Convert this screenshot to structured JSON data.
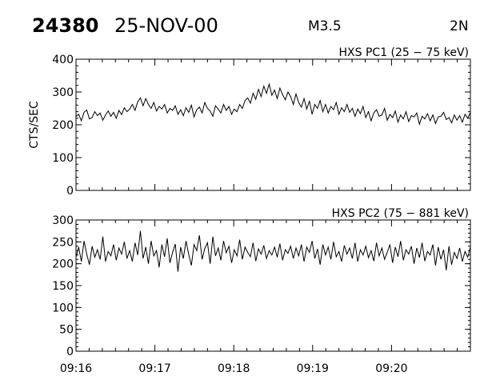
{
  "header": {
    "event_id": "24380",
    "date": "25-NOV-00",
    "flare_class": "M3.5",
    "location": "2N"
  },
  "chart_data": [
    {
      "type": "line",
      "title": "HXS PC1 (25 − 75 keV)",
      "ylabel": "CTS/SEC",
      "ylim": [
        0,
        400
      ],
      "yticks": [
        0,
        100,
        200,
        300,
        400
      ],
      "xlim": [
        0,
        5
      ],
      "xticks": [
        0,
        1,
        2,
        3,
        4
      ],
      "xtick_labels": [
        "09:16",
        "09:17",
        "09:18",
        "09:19",
        "09:20"
      ],
      "x_unit": "minutes after 09:16",
      "series": [
        {
          "values": [
            225,
            232,
            212,
            238,
            245,
            218,
            222,
            240,
            228,
            236,
            214,
            230,
            242,
            226,
            238,
            220,
            244,
            231,
            252,
            240,
            248,
            262,
            244,
            270,
            282,
            258,
            280,
            262,
            250,
            268,
            242,
            256,
            248,
            262,
            236,
            250,
            244,
            258,
            232,
            246,
            228,
            252,
            238,
            260,
            224,
            246,
            254,
            236,
            268,
            250,
            242,
            226,
            258,
            248,
            236,
            262,
            244,
            256,
            232,
            248,
            240,
            262,
            250,
            274,
            282,
            266,
            296,
            278,
            308,
            286,
            318,
            296,
            324,
            290,
            306,
            280,
            312,
            292,
            276,
            300,
            286,
            262,
            294,
            268,
            254,
            280,
            248,
            272,
            232,
            262,
            250,
            274,
            240,
            262,
            236,
            256,
            246,
            268,
            232,
            252,
            240,
            262,
            238,
            250,
            226,
            248,
            234,
            256,
            222,
            240,
            212,
            236,
            246,
            226,
            230,
            250,
            214,
            232,
            222,
            242,
            208,
            230,
            218,
            240,
            210,
            228,
            224,
            236,
            202,
            226,
            218,
            234,
            212,
            230,
            204,
            224,
            226,
            238,
            216,
            222,
            206,
            230,
            214,
            228,
            208,
            232,
            220,
            238
          ]
        }
      ]
    },
    {
      "type": "line",
      "title": "HXS PC2 (75 − 881 keV)",
      "ylabel": "",
      "ylim": [
        0,
        300
      ],
      "yticks": [
        0,
        50,
        100,
        150,
        200,
        250,
        300
      ],
      "xlim": [
        0,
        5
      ],
      "xticks": [
        0,
        1,
        2,
        3,
        4
      ],
      "xtick_labels": [
        "09:16",
        "09:17",
        "09:18",
        "09:19",
        "09:20"
      ],
      "series": [
        {
          "values": [
            215,
            238,
            205,
            252,
            222,
            198,
            240,
            215,
            232,
            210,
            262,
            205,
            228,
            218,
            244,
            208,
            236,
            222,
            250,
            212,
            230,
            205,
            248,
            220,
            275,
            212,
            238,
            200,
            252,
            218,
            230,
            192,
            244,
            216,
            258,
            202,
            226,
            245,
            182,
            238,
            212,
            252,
            222,
            196,
            244,
            230,
            265,
            210,
            235,
            248,
            200,
            262,
            218,
            236,
            208,
            252,
            225,
            240,
            202,
            232,
            218,
            255,
            210,
            238,
            226,
            216,
            248,
            206,
            234,
            222,
            242,
            212,
            230,
            220,
            238,
            215,
            246,
            208,
            232,
            224,
            240,
            212,
            236,
            218,
            244,
            205,
            238,
            226,
            252,
            212,
            234,
            198,
            244,
            220,
            238,
            210,
            250,
            216,
            228,
            205,
            242,
            222,
            236,
            212,
            248,
            205,
            232,
            220,
            240,
            214,
            230,
            206,
            248,
            218,
            236,
            210,
            226,
            244,
            202,
            238,
            216,
            252,
            208,
            232,
            222,
            240,
            200,
            236,
            214,
            248,
            206,
            228,
            220,
            244,
            196,
            238,
            210,
            232,
            185,
            240,
            198,
            226,
            212,
            236,
            205,
            228,
            215,
            238
          ]
        }
      ]
    }
  ]
}
